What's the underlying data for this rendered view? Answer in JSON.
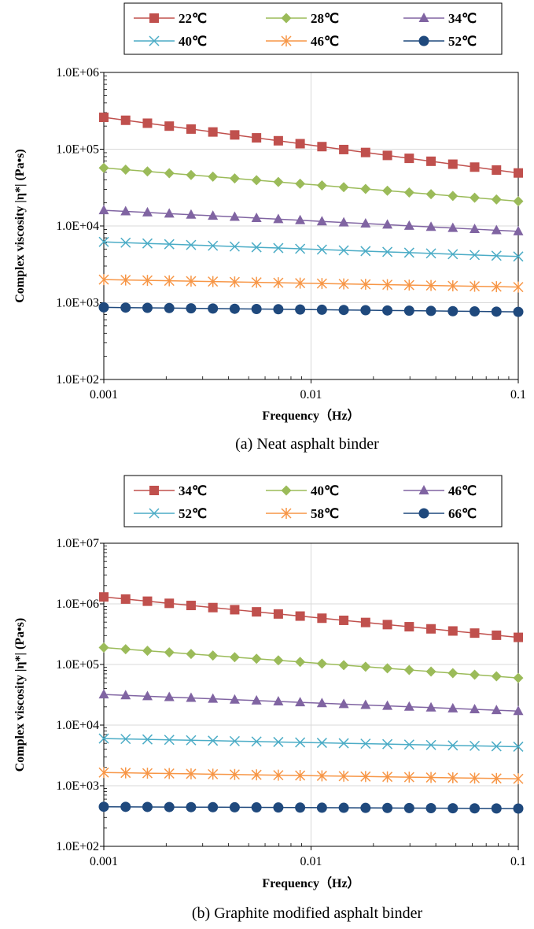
{
  "chart_data": [
    {
      "type": "line",
      "caption": "(a) Neat asphalt binder",
      "xlabel": "Frequency（Hz）",
      "ylabel": "Complex viscosity |η*| (Pa•s)",
      "xscale": "log",
      "yscale": "log",
      "xlim": [
        0.001,
        0.1
      ],
      "ylim": [
        100,
        1000000
      ],
      "xticks": [
        "0.001",
        "0.01",
        "0.1"
      ],
      "yticks": [
        "1.0E+02",
        "1.0E+03",
        "1.0E+04",
        "1.0E+05",
        "1.0E+06"
      ],
      "grid": true,
      "legend_position": "top",
      "series": [
        {
          "name": "22℃",
          "color": "#c0504d",
          "marker": "square",
          "start": 260000,
          "end": 49000
        },
        {
          "name": "28℃",
          "color": "#9bbb59",
          "marker": "diamond",
          "start": 57000,
          "end": 21000
        },
        {
          "name": "34℃",
          "color": "#8064a2",
          "marker": "triangle",
          "start": 16000,
          "end": 8500
        },
        {
          "name": "40℃",
          "color": "#4bacc6",
          "marker": "x",
          "start": 6200,
          "end": 4000
        },
        {
          "name": "46℃",
          "color": "#f79646",
          "marker": "star",
          "start": 2000,
          "end": 1600
        },
        {
          "name": "52℃",
          "color": "#1f497d",
          "marker": "circle",
          "start": 870,
          "end": 760
        }
      ]
    },
    {
      "type": "line",
      "caption": "(b) Graphite modified asphalt binder",
      "xlabel": "Frequency（Hz）",
      "ylabel": "Complex viscosity |η*| (Pa•s)",
      "xscale": "log",
      "yscale": "log",
      "xlim": [
        0.001,
        0.1
      ],
      "ylim": [
        100,
        10000000
      ],
      "xticks": [
        "0.001",
        "0.01",
        "0.1"
      ],
      "yticks": [
        "1.0E+02",
        "1.0E+03",
        "1.0E+04",
        "1.0E+05",
        "1.0E+06",
        "1.0E+07"
      ],
      "grid": true,
      "legend_position": "top",
      "series": [
        {
          "name": "34℃",
          "color": "#c0504d",
          "marker": "square",
          "start": 1300000,
          "end": 280000
        },
        {
          "name": "40℃",
          "color": "#9bbb59",
          "marker": "diamond",
          "start": 190000,
          "end": 60000
        },
        {
          "name": "46℃",
          "color": "#8064a2",
          "marker": "triangle",
          "start": 32000,
          "end": 17000
        },
        {
          "name": "52℃",
          "color": "#4bacc6",
          "marker": "x",
          "start": 6000,
          "end": 4400
        },
        {
          "name": "58℃",
          "color": "#f79646",
          "marker": "star",
          "start": 1650,
          "end": 1300
        },
        {
          "name": "66℃",
          "color": "#1f497d",
          "marker": "circle",
          "start": 450,
          "end": 420
        }
      ]
    }
  ]
}
